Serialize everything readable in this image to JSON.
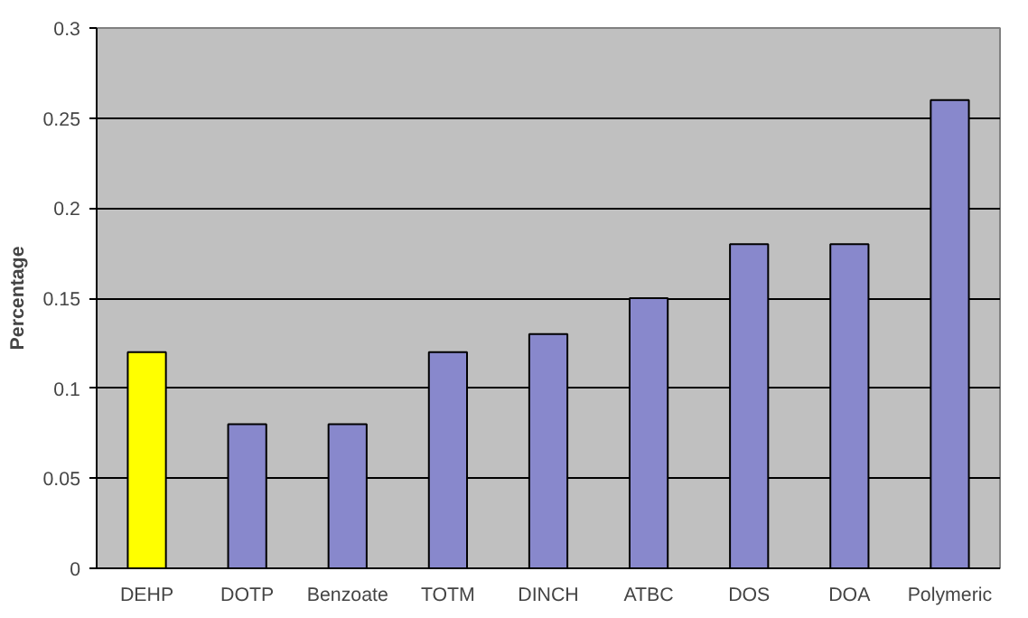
{
  "chart_data": {
    "type": "bar",
    "ylabel": "Percentage",
    "categories": [
      "DEHP",
      "DOTP",
      "Benzoate",
      "TOTM",
      "DINCH",
      "ATBC",
      "DOS",
      "DOA",
      "Polymeric"
    ],
    "values": [
      0.12,
      0.08,
      0.08,
      0.12,
      0.13,
      0.15,
      0.18,
      0.18,
      0.26
    ],
    "colors": [
      "#ffff00",
      "#8888cc",
      "#8888cc",
      "#8888cc",
      "#8888cc",
      "#8888cc",
      "#8888cc",
      "#8888cc",
      "#8888cc"
    ],
    "ylim": [
      0,
      0.3
    ],
    "yticks": [
      0,
      0.05,
      0.1,
      0.15,
      0.2,
      0.25,
      0.3
    ],
    "grid": "y"
  }
}
